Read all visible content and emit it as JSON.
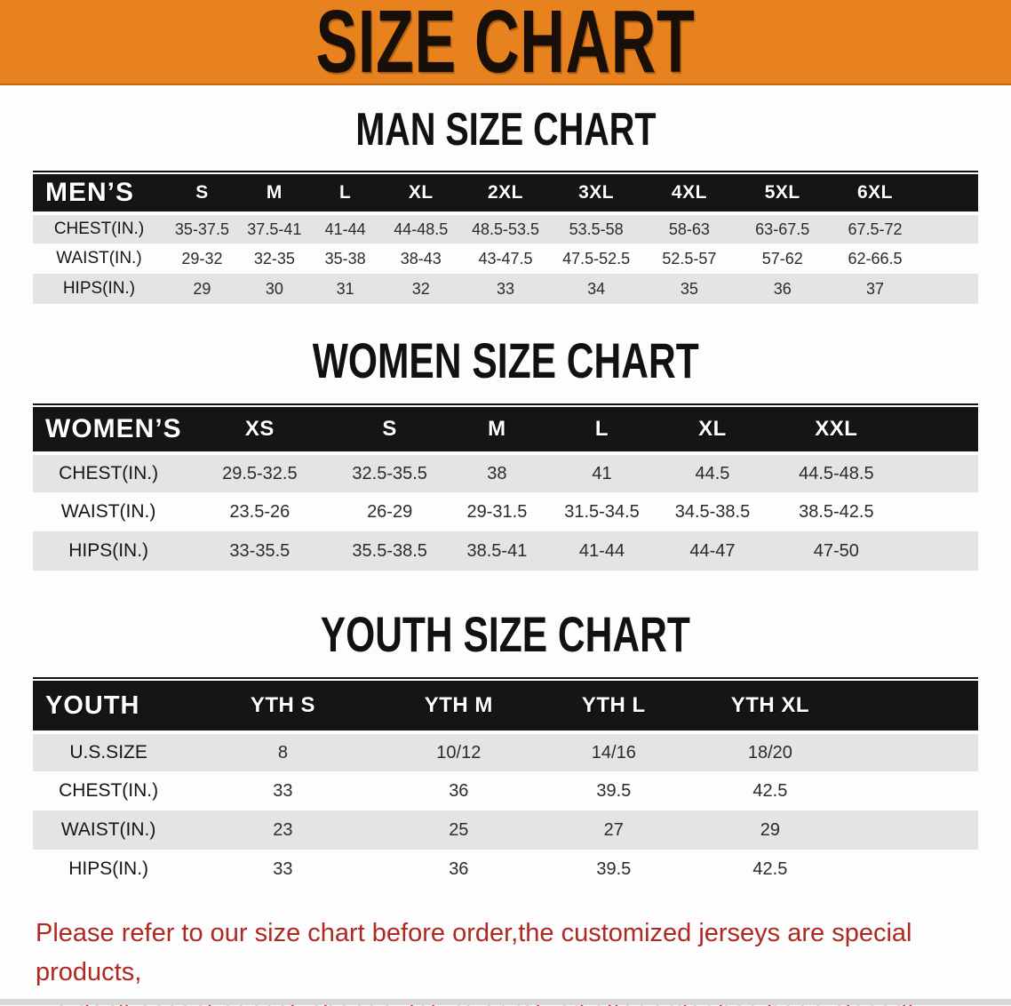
{
  "banner": {
    "title": "SIZE CHART"
  },
  "colors": {
    "banner_bg": "#E8821E",
    "header_band": "#151515",
    "row_stripe": "#E4E4E4",
    "disclaimer_red": "#AD2921"
  },
  "sections": [
    {
      "heading": "MAN SIZE CHART",
      "table": {
        "columns": [
          "MEN’S",
          "S",
          "M",
          "L",
          "XL",
          "2XL",
          "3XL",
          "4XL",
          "5XL",
          "6XL"
        ],
        "rows": [
          {
            "label": "CHEST(IN.)",
            "values": [
              "35-37.5",
              "37.5-41",
              "41-44",
              "44-48.5",
              "48.5-53.5",
              "53.5-58",
              "58-63",
              "63-67.5",
              "67.5-72"
            ]
          },
          {
            "label": "WAIST(IN.)",
            "values": [
              "29-32",
              "32-35",
              "35-38",
              "38-43",
              "43-47.5",
              "47.5-52.5",
              "52.5-57",
              "57-62",
              "62-66.5"
            ]
          },
          {
            "label": "HIPS(IN.)",
            "values": [
              "29",
              "30",
              "31",
              "32",
              "33",
              "34",
              "35",
              "36",
              "37"
            ]
          }
        ]
      }
    },
    {
      "heading": "WOMEN SIZE CHART",
      "table": {
        "columns": [
          "WOMEN’S",
          "XS",
          "S",
          "M",
          "L",
          "XL",
          "XXL"
        ],
        "rows": [
          {
            "label": "CHEST(IN.)",
            "values": [
              "29.5-32.5",
              "32.5-35.5",
              "38",
              "41",
              "44.5",
              "44.5-48.5"
            ]
          },
          {
            "label": "WAIST(IN.)",
            "values": [
              "23.5-26",
              "26-29",
              "29-31.5",
              "31.5-34.5",
              "34.5-38.5",
              "38.5-42.5"
            ]
          },
          {
            "label": "HIPS(IN.)",
            "values": [
              "33-35.5",
              "35.5-38.5",
              "38.5-41",
              "41-44",
              "44-47",
              "47-50"
            ]
          }
        ]
      }
    },
    {
      "heading": "YOUTH SIZE CHART",
      "table": {
        "columns": [
          "YOUTH",
          "YTH S",
          "YTH M",
          "YTH L",
          "YTH XL"
        ],
        "rows": [
          {
            "label": "U.S.SIZE",
            "values": [
              "8",
              "10/12",
              "14/16",
              "18/20"
            ]
          },
          {
            "label": "CHEST(IN.)",
            "values": [
              "33",
              "36",
              "39.5",
              "42.5"
            ]
          },
          {
            "label": "WAIST(IN.)",
            "values": [
              "23",
              "25",
              "27",
              "29"
            ]
          },
          {
            "label": "HIPS(IN.)",
            "values": [
              "33",
              "36",
              "39.5",
              "42.5"
            ]
          }
        ]
      }
    }
  ],
  "footer": {
    "line1": "Please refer to our size chart before order,the customized jerseys are special products,",
    "line2": "we don't accept cancel, change, teturn or refund after order has been placed!"
  }
}
